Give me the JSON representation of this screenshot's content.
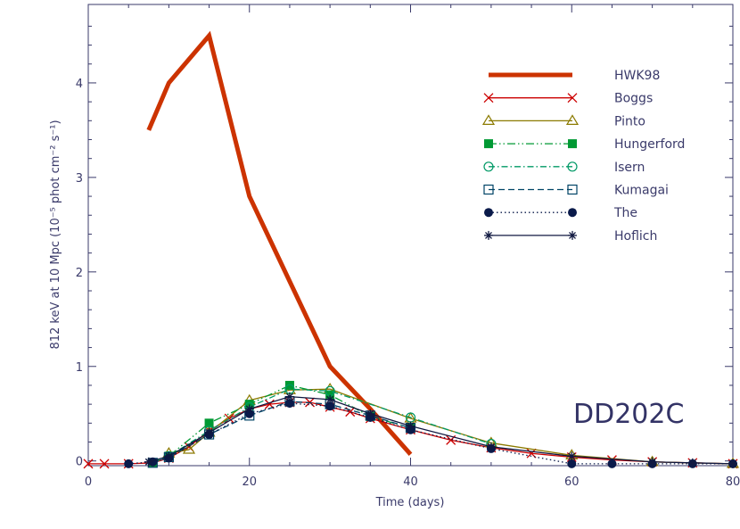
{
  "chart_data": {
    "type": "line",
    "title": "",
    "xlabel": "Time (days)",
    "ylabel": "812 keV at 10 Mpc (10⁻⁵ phot cm⁻² s⁻¹)",
    "xlim": [
      0,
      80
    ],
    "ylim": [
      -0.05,
      4.83
    ],
    "xticks": [
      0,
      20,
      40,
      60,
      80
    ],
    "yticks": [
      0,
      1,
      2,
      3,
      4
    ],
    "annotation": "DD202C",
    "legend_position": "top-right",
    "series": [
      {
        "name": "HWK98",
        "color": "#cc3300",
        "style": "thick",
        "marker": "none",
        "x": [
          7.5,
          10,
          15,
          20,
          25,
          30,
          35,
          40
        ],
        "y": [
          3.5,
          4.0,
          4.5,
          2.8,
          1.9,
          1.0,
          0.55,
          0.07
        ]
      },
      {
        "name": "Boggs",
        "color": "#cc0000",
        "style": "solid",
        "marker": "x",
        "x": [
          0,
          2,
          5,
          8,
          10,
          12.5,
          15,
          17.5,
          20,
          22.5,
          25,
          27.5,
          30,
          32.5,
          35,
          40,
          45,
          50,
          55,
          60,
          65,
          70,
          75,
          80
        ],
        "y": [
          -0.03,
          -0.03,
          -0.03,
          -0.02,
          0.03,
          0.15,
          0.32,
          0.45,
          0.55,
          0.6,
          0.62,
          0.62,
          0.57,
          0.52,
          0.45,
          0.33,
          0.22,
          0.14,
          0.08,
          0.04,
          0.01,
          -0.01,
          -0.02,
          -0.03
        ]
      },
      {
        "name": "Pinto",
        "color": "#8b7a00",
        "style": "solid",
        "marker": "triangle",
        "x": [
          10,
          12.5,
          15,
          20,
          25,
          30,
          40,
          50,
          60,
          70,
          80
        ],
        "y": [
          0.08,
          0.12,
          0.3,
          0.64,
          0.75,
          0.76,
          0.45,
          0.19,
          0.06,
          -0.01,
          -0.03
        ]
      },
      {
        "name": "Hungerford",
        "color": "#009933",
        "style": "dashdotdot",
        "marker": "square-filled",
        "x": [
          8,
          10,
          15,
          20,
          25,
          30,
          35,
          40
        ],
        "y": [
          -0.02,
          0.05,
          0.4,
          0.6,
          0.8,
          0.7,
          0.47,
          0.35
        ]
      },
      {
        "name": "Isern",
        "color": "#009966",
        "style": "dashdot",
        "marker": "circle-open",
        "x": [
          10,
          15,
          20,
          25,
          30,
          40,
          50
        ],
        "y": [
          0.05,
          0.32,
          0.57,
          0.76,
          0.74,
          0.46,
          0.18
        ]
      },
      {
        "name": "Kumagai",
        "color": "#004466",
        "style": "dashed",
        "marker": "square-open",
        "x": [
          8,
          10,
          15,
          20,
          25,
          30,
          35,
          40
        ],
        "y": [
          -0.02,
          0.04,
          0.28,
          0.48,
          0.63,
          0.6,
          0.48,
          0.35
        ]
      },
      {
        "name": "The",
        "color": "#0a1a4a",
        "style": "dotted",
        "marker": "circle-filled",
        "x": [
          5,
          8,
          10,
          15,
          20,
          25,
          30,
          35,
          40,
          50,
          60,
          65,
          70,
          75,
          80
        ],
        "y": [
          -0.03,
          -0.01,
          0.03,
          0.28,
          0.5,
          0.61,
          0.58,
          0.46,
          0.33,
          0.13,
          -0.03,
          -0.03,
          -0.03,
          -0.03,
          -0.03
        ]
      },
      {
        "name": "Hoflich",
        "color": "#101840",
        "style": "solid",
        "marker": "asterisk",
        "x": [
          7.5,
          10,
          15,
          20,
          25,
          30,
          35,
          40,
          50,
          60,
          70,
          75,
          80
        ],
        "y": [
          -0.01,
          0.05,
          0.3,
          0.55,
          0.68,
          0.65,
          0.5,
          0.37,
          0.15,
          0.05,
          -0.01,
          -0.02,
          -0.03
        ]
      }
    ]
  }
}
